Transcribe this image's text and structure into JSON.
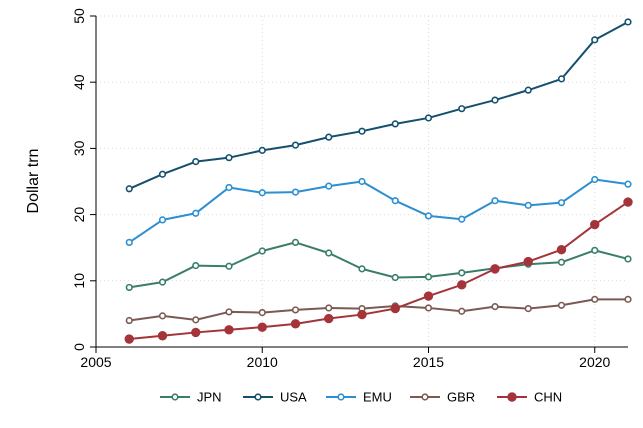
{
  "chart_data": {
    "type": "line",
    "title": "",
    "xlabel": "",
    "ylabel": "Dollar trn",
    "xlim": [
      2005,
      2021
    ],
    "ylim": [
      0,
      50
    ],
    "xticks": [
      2005,
      2010,
      2015,
      2020
    ],
    "yticks": [
      0,
      10,
      20,
      30,
      40,
      50
    ],
    "grid": "vertical and horizontal dotted",
    "legend_position": "bottom",
    "x": [
      2006,
      2007,
      2008,
      2009,
      2010,
      2011,
      2012,
      2013,
      2014,
      2015,
      2016,
      2017,
      2018,
      2019,
      2020,
      2021
    ],
    "series": [
      {
        "name": "JPN",
        "color": "#3a7d6c",
        "marker": "hollow-circle",
        "values": [
          9.0,
          9.8,
          12.3,
          12.2,
          14.5,
          15.8,
          14.2,
          11.8,
          10.5,
          10.6,
          11.2,
          11.9,
          12.5,
          12.8,
          14.6,
          13.3
        ]
      },
      {
        "name": "USA",
        "color": "#14506e",
        "marker": "hollow-circle",
        "values": [
          23.9,
          26.1,
          28.0,
          28.6,
          29.7,
          30.5,
          31.7,
          32.6,
          33.7,
          34.6,
          36.0,
          37.3,
          38.8,
          40.5,
          46.4,
          49.1
        ]
      },
      {
        "name": "EMU",
        "color": "#2b8fd1",
        "marker": "hollow-circle",
        "values": [
          15.8,
          19.2,
          20.2,
          24.1,
          23.3,
          23.4,
          24.3,
          25.0,
          22.1,
          19.8,
          19.3,
          22.1,
          21.4,
          21.8,
          25.3,
          24.6
        ]
      },
      {
        "name": "GBR",
        "color": "#7a5a52",
        "marker": "hollow-circle",
        "values": [
          4.0,
          4.7,
          4.1,
          5.3,
          5.2,
          5.6,
          5.9,
          5.8,
          6.2,
          5.9,
          5.4,
          6.1,
          5.8,
          6.3,
          7.2,
          7.2
        ]
      },
      {
        "name": "CHN",
        "color": "#a4343a",
        "marker": "filled-circle",
        "values": [
          1.2,
          1.7,
          2.2,
          2.6,
          3.0,
          3.5,
          4.3,
          4.9,
          5.8,
          7.7,
          9.4,
          11.8,
          12.9,
          14.7,
          18.5,
          21.9
        ]
      }
    ]
  }
}
